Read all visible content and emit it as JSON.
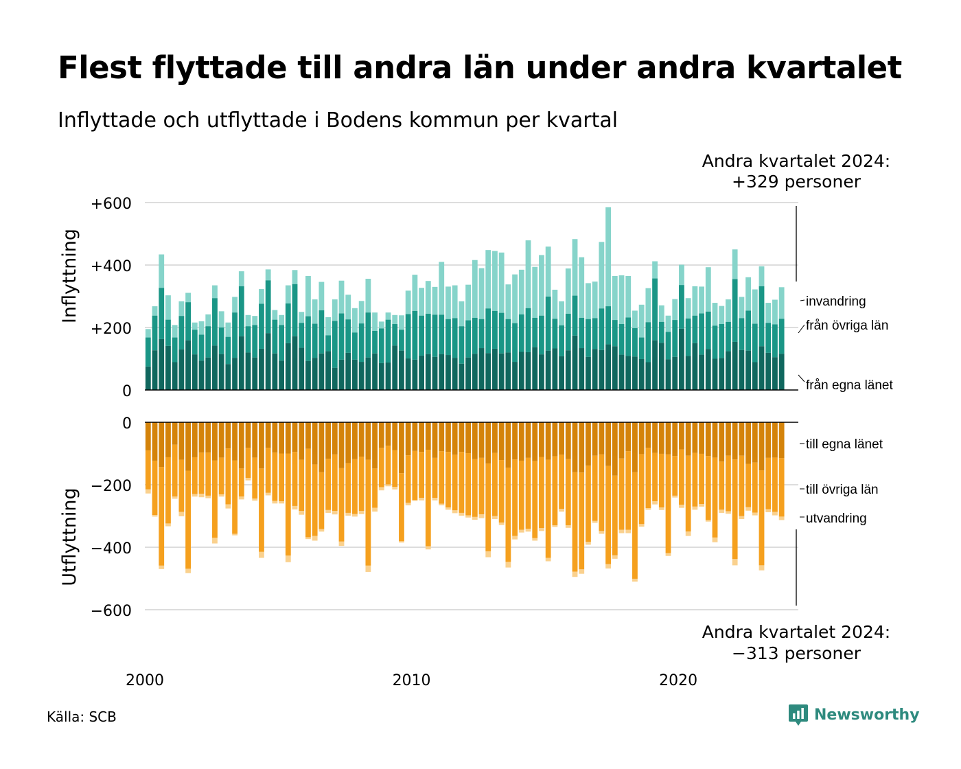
{
  "header": {
    "title": "Flest flyttade till andra län under andra kvartalet",
    "subtitle": "Inflyttade och utflyttade i Bodens kommun per kvartal"
  },
  "footer": {
    "source": "Källa: SCB",
    "brand": "Newsworthy",
    "brand_icon": "newsworthy-logo-icon"
  },
  "colors": {
    "in_same": "#10675e",
    "in_other": "#1a9686",
    "in_immigration": "#86d4ca",
    "out_same": "#d4830a",
    "out_other": "#f5a01e",
    "out_emigration": "#fad18e",
    "grid": "#dddddd",
    "brand": "#2e8a7e"
  },
  "chart_data": {
    "type": "bar",
    "stacked": true,
    "x_range": [
      2000,
      2024.5
    ],
    "x_ticks": [
      "2000",
      "2010",
      "2020"
    ],
    "grid": true,
    "in_panel": {
      "ylabel": "Inflyttning",
      "ylim": [
        0,
        600
      ],
      "y_ticks": [
        "0",
        "+200",
        "+400",
        "+600"
      ],
      "series_names": [
        "från egna länet",
        "från övriga län",
        "invandring"
      ]
    },
    "out_panel": {
      "ylabel": "Utflyttning",
      "ylim": [
        -600,
        0
      ],
      "y_ticks": [
        "0",
        "−200",
        "−400",
        "−600"
      ],
      "series_names": [
        "till egna länet",
        "till övriga län",
        "utvandring"
      ]
    },
    "annotation_in": [
      "Andra kvartalet 2024:",
      "+329 personer"
    ],
    "annotation_out": [
      "Andra kvartalet 2024:",
      "−313 personer"
    ],
    "quarters": [
      "2000 Q1",
      "2000 Q2",
      "2000 Q3",
      "2000 Q4",
      "2001 Q1",
      "2001 Q2",
      "2001 Q3",
      "2001 Q4",
      "2002 Q1",
      "2002 Q2",
      "2002 Q3",
      "2002 Q4",
      "2003 Q1",
      "2003 Q2",
      "2003 Q3",
      "2003 Q4",
      "2004 Q1",
      "2004 Q2",
      "2004 Q3",
      "2004 Q4",
      "2005 Q1",
      "2005 Q2",
      "2005 Q3",
      "2005 Q4",
      "2006 Q1",
      "2006 Q2",
      "2006 Q3",
      "2006 Q4",
      "2007 Q1",
      "2007 Q2",
      "2007 Q3",
      "2007 Q4",
      "2008 Q1",
      "2008 Q2",
      "2008 Q3",
      "2008 Q4",
      "2009 Q1",
      "2009 Q2",
      "2009 Q3",
      "2009 Q4",
      "2010 Q1",
      "2010 Q2",
      "2010 Q3",
      "2010 Q4",
      "2011 Q1",
      "2011 Q2",
      "2011 Q3",
      "2011 Q4",
      "2012 Q1",
      "2012 Q2",
      "2012 Q3",
      "2012 Q4",
      "2013 Q1",
      "2013 Q2",
      "2013 Q3",
      "2013 Q4",
      "2014 Q1",
      "2014 Q2",
      "2014 Q3",
      "2014 Q4",
      "2015 Q1",
      "2015 Q2",
      "2015 Q3",
      "2015 Q4",
      "2016 Q1",
      "2016 Q2",
      "2016 Q3",
      "2016 Q4",
      "2017 Q1",
      "2017 Q2",
      "2017 Q3",
      "2017 Q4",
      "2018 Q1",
      "2018 Q2",
      "2018 Q3",
      "2018 Q4",
      "2019 Q1",
      "2019 Q2",
      "2019 Q3",
      "2019 Q4",
      "2020 Q1",
      "2020 Q2",
      "2020 Q3",
      "2020 Q4",
      "2021 Q1",
      "2021 Q2",
      "2021 Q3",
      "2021 Q4",
      "2022 Q1",
      "2022 Q2",
      "2022 Q3",
      "2022 Q4",
      "2023 Q1",
      "2023 Q2",
      "2023 Q3",
      "2023 Q4",
      "2024 Q1",
      "2024 Q2"
    ],
    "in_total": [
      195,
      268,
      434,
      303,
      208,
      284,
      311,
      216,
      220,
      242,
      335,
      252,
      216,
      298,
      380,
      240,
      237,
      323,
      386,
      256,
      240,
      335,
      384,
      250,
      365,
      290,
      346,
      233,
      290,
      350,
      305,
      262,
      285,
      356,
      248,
      219,
      248,
      240,
      239,
      318,
      369,
      327,
      349,
      330,
      410,
      331,
      335,
      284,
      337,
      416,
      390,
      448,
      445,
      440,
      338,
      370,
      385,
      479,
      394,
      432,
      459,
      321,
      284,
      389,
      483,
      425,
      342,
      347,
      474,
      585,
      365,
      367,
      365,
      254,
      273,
      326,
      412,
      271,
      238,
      291,
      401,
      294,
      332,
      331,
      393,
      279,
      269,
      290,
      450,
      298,
      361,
      322,
      396,
      279,
      289,
      329
    ],
    "in_same_other": [
      168,
      238,
      327,
      225,
      168,
      237,
      281,
      193,
      177,
      204,
      294,
      200,
      170,
      248,
      332,
      204,
      208,
      276,
      351,
      225,
      208,
      277,
      339,
      215,
      236,
      212,
      255,
      175,
      221,
      245,
      226,
      184,
      213,
      248,
      189,
      197,
      225,
      211,
      193,
      243,
      253,
      238,
      244,
      241,
      241,
      227,
      230,
      204,
      223,
      231,
      227,
      261,
      253,
      247,
      227,
      214,
      242,
      262,
      231,
      238,
      299,
      228,
      207,
      244,
      302,
      231,
      227,
      230,
      261,
      268,
      224,
      211,
      232,
      198,
      168,
      217,
      357,
      218,
      186,
      224,
      336,
      229,
      238,
      245,
      251,
      206,
      211,
      218,
      355,
      230,
      254,
      212,
      332,
      215,
      210,
      228
    ],
    "in_same": [
      75,
      127,
      163,
      141,
      89,
      130,
      159,
      114,
      94,
      104,
      142,
      115,
      83,
      103,
      172,
      120,
      104,
      132,
      182,
      117,
      94,
      150,
      172,
      135,
      93,
      103,
      117,
      124,
      71,
      97,
      119,
      97,
      90,
      104,
      117,
      86,
      88,
      142,
      126,
      101,
      97,
      110,
      115,
      106,
      115,
      112,
      103,
      84,
      104,
      116,
      134,
      118,
      132,
      117,
      120,
      90,
      122,
      121,
      137,
      114,
      126,
      133,
      108,
      127,
      174,
      134,
      106,
      131,
      128,
      146,
      140,
      113,
      109,
      107,
      99,
      89,
      159,
      151,
      98,
      106,
      196,
      109,
      150,
      113,
      131,
      100,
      102,
      124,
      154,
      128,
      126,
      89,
      140,
      119,
      105,
      116
    ],
    "out_total": [
      228,
      302,
      470,
      333,
      245,
      301,
      483,
      238,
      240,
      243,
      388,
      238,
      276,
      362,
      247,
      186,
      251,
      434,
      234,
      260,
      260,
      448,
      279,
      296,
      374,
      379,
      350,
      290,
      295,
      396,
      299,
      302,
      294,
      479,
      286,
      218,
      205,
      215,
      385,
      266,
      252,
      250,
      407,
      250,
      266,
      280,
      291,
      299,
      305,
      312,
      307,
      432,
      310,
      329,
      465,
      375,
      353,
      350,
      379,
      348,
      445,
      335,
      286,
      338,
      495,
      485,
      392,
      322,
      357,
      468,
      437,
      355,
      355,
      510,
      334,
      280,
      263,
      281,
      428,
      241,
      274,
      364,
      280,
      270,
      318,
      384,
      290,
      293,
      458,
      310,
      283,
      298,
      474,
      288,
      298,
      313
    ],
    "out_same_other": [
      215,
      297,
      459,
      324,
      238,
      287,
      469,
      230,
      229,
      235,
      370,
      231,
      263,
      357,
      238,
      178,
      244,
      415,
      226,
      252,
      253,
      427,
      268,
      284,
      368,
      364,
      342,
      281,
      284,
      382,
      290,
      294,
      284,
      459,
      274,
      208,
      199,
      207,
      381,
      258,
      249,
      242,
      397,
      242,
      261,
      273,
      282,
      290,
      298,
      303,
      295,
      413,
      300,
      321,
      447,
      364,
      344,
      341,
      371,
      339,
      434,
      330,
      277,
      330,
      478,
      471,
      383,
      316,
      348,
      454,
      426,
      344,
      344,
      501,
      326,
      275,
      253,
      273,
      419,
      235,
      264,
      350,
      270,
      262,
      313,
      369,
      280,
      285,
      438,
      300,
      272,
      289,
      458,
      278,
      287,
      302
    ],
    "out_same": [
      90,
      123,
      143,
      112,
      72,
      120,
      155,
      112,
      97,
      97,
      122,
      113,
      84,
      122,
      148,
      82,
      113,
      148,
      82,
      97,
      100,
      100,
      95,
      120,
      85,
      135,
      160,
      117,
      103,
      147,
      131,
      118,
      110,
      120,
      148,
      82,
      75,
      89,
      163,
      106,
      92,
      95,
      88,
      114,
      93,
      95,
      104,
      95,
      99,
      118,
      114,
      132,
      98,
      121,
      145,
      119,
      123,
      114,
      124,
      111,
      120,
      109,
      104,
      118,
      160,
      161,
      139,
      107,
      103,
      140,
      171,
      116,
      93,
      160,
      102,
      82,
      98,
      101,
      103,
      108,
      87,
      107,
      98,
      101,
      108,
      113,
      126,
      107,
      119,
      107,
      133,
      129,
      154,
      114,
      113,
      115
    ]
  }
}
